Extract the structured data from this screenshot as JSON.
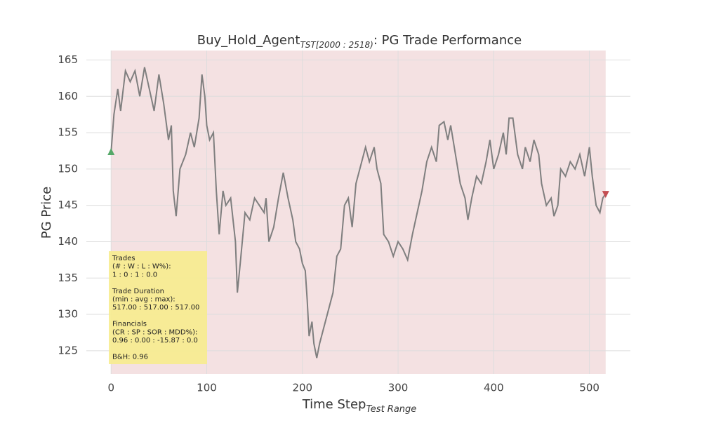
{
  "chart_data": {
    "type": "line",
    "title": {
      "main": "Buy_Hold_Agent",
      "sub": "TST[2000 : 2518)",
      "rest": ": PG Trade Performance"
    },
    "x_label": {
      "main": "Time Step",
      "sub": "Test Range"
    },
    "y_label": "PG Price",
    "x": [
      0,
      3,
      7,
      10,
      15,
      20,
      25,
      30,
      35,
      40,
      45,
      50,
      55,
      60,
      63,
      65,
      68,
      72,
      78,
      83,
      87,
      92,
      95,
      98,
      100,
      103,
      107,
      110,
      113,
      117,
      120,
      125,
      130,
      132,
      135,
      140,
      145,
      150,
      155,
      160,
      162,
      165,
      170,
      175,
      180,
      185,
      190,
      193,
      197,
      200,
      203,
      205,
      207,
      210,
      212,
      215,
      218,
      222,
      228,
      232,
      236,
      240,
      244,
      248,
      252,
      256,
      262,
      266,
      270,
      275,
      278,
      282,
      285,
      290,
      295,
      300,
      305,
      310,
      315,
      320,
      325,
      330,
      335,
      340,
      343,
      348,
      352,
      355,
      360,
      365,
      370,
      373,
      377,
      382,
      387,
      392,
      396,
      400,
      405,
      410,
      413,
      416,
      420,
      425,
      430,
      433,
      438,
      442,
      447,
      450,
      455,
      460,
      463,
      467,
      470,
      475,
      480,
      485,
      490,
      495,
      500,
      503,
      507,
      511,
      514,
      517
    ],
    "values": [
      152.3,
      157.5,
      161,
      158,
      163.5,
      162,
      163.5,
      160,
      164,
      161,
      158,
      163,
      159,
      154,
      156,
      147,
      143.5,
      150,
      152,
      155,
      153,
      157,
      163,
      160,
      156,
      154,
      155,
      147,
      141,
      147,
      145,
      146,
      140,
      133,
      137,
      144,
      143,
      146,
      145,
      144,
      146,
      140,
      142,
      146,
      149.5,
      146,
      143,
      140,
      139,
      137,
      136,
      132,
      127,
      129,
      126,
      124,
      126,
      128,
      131,
      133,
      138,
      139,
      145,
      146,
      142,
      148,
      151,
      153,
      151,
      153,
      150,
      148,
      141,
      140,
      138,
      140,
      139,
      137.5,
      141,
      144,
      147,
      151,
      153,
      151,
      156,
      156.5,
      154,
      156,
      152,
      148,
      146,
      143,
      146,
      149,
      148,
      151,
      154,
      150,
      152,
      155,
      152,
      157,
      157,
      152,
      150,
      153,
      151,
      154,
      152,
      148,
      145,
      146,
      143.5,
      145,
      150,
      149,
      151,
      150,
      152,
      149,
      153,
      149,
      145,
      144,
      146,
      146.6
    ],
    "color": "#7f7f7f",
    "buy": {
      "x": 0,
      "y": 152.3,
      "color": "#55a868"
    },
    "sell": {
      "x": 517,
      "y": 146.6,
      "color": "#c44e52"
    },
    "shade": {
      "from": 0,
      "to": 517,
      "color": "#f4e1e2"
    },
    "annotation": [
      [
        "Trades",
        "(# : W : L : W%):",
        "1 : 0 : 1 : 0.0"
      ],
      [
        "Trade Duration",
        "(min : avg : max):",
        "517.00 : 517.00 : 517.00"
      ],
      [
        "Financials",
        "(CR : SP : SOR : MDD%):",
        "0.96 : 0.00 : -15.87 : 0.0"
      ],
      [
        "B&H: 0.96"
      ]
    ],
    "annotation_color": "#f7ec8e",
    "xlim": [
      -25.85,
      542.85
    ],
    "ylim": [
      121.8,
      166.3
    ],
    "xticks": [
      0,
      100,
      200,
      300,
      400,
      500
    ],
    "yticks": [
      125,
      130,
      135,
      140,
      145,
      150,
      155,
      160,
      165
    ],
    "grid": true
  }
}
